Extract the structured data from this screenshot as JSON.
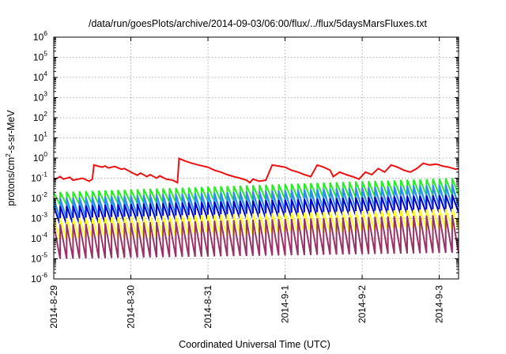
{
  "chart_data": {
    "type": "line",
    "title": "/data/run/goesPlots/archive/2014-09-03/06:00/flux/../flux/5daysMarsFluxes.txt",
    "xlabel": "Coordinated Universal Time (UTC)",
    "ylabel_prefix": "protons/cm",
    "ylabel_sup": "2",
    "ylabel_suffix": "-s-sr-MeV",
    "xscale": "time",
    "yscale": "log",
    "xlim": [
      "2014-08-29T00:00",
      "2014-09-03T06:00"
    ],
    "ylim": [
      1e-06,
      1000000.0
    ],
    "x_ticks": [
      {
        "t": "2014-08-29",
        "label": "2014-8-29"
      },
      {
        "t": "2014-08-30",
        "label": "2014-8-30"
      },
      {
        "t": "2014-08-31",
        "label": "2014-8-31"
      },
      {
        "t": "2014-09-01",
        "label": "2014-9-1"
      },
      {
        "t": "2014-09-02",
        "label": "2014-9-2"
      },
      {
        "t": "2014-09-03",
        "label": "2014-9-3"
      }
    ],
    "y_ticks": [
      {
        "base": "10",
        "exp": "-6"
      },
      {
        "base": "10",
        "exp": "-5"
      },
      {
        "base": "10",
        "exp": "-4"
      },
      {
        "base": "10",
        "exp": "-3"
      },
      {
        "base": "10",
        "exp": "-2"
      },
      {
        "base": "10",
        "exp": "-1"
      },
      {
        "base": "10",
        "exp": "0"
      },
      {
        "base": "10",
        "exp": "1"
      },
      {
        "base": "10",
        "exp": "2"
      },
      {
        "base": "10",
        "exp": "3"
      },
      {
        "base": "10",
        "exp": "4"
      },
      {
        "base": "10",
        "exp": "5"
      },
      {
        "base": "10",
        "exp": "6"
      }
    ],
    "grid": true,
    "legend": "none",
    "series": [
      {
        "color": "#ee1111",
        "x": [
          "2014-08-29T00:00",
          "2014-08-29T02:00",
          "2014-08-29T03:00",
          "2014-08-29T05:00",
          "2014-08-29T06:00",
          "2014-08-29T09:00",
          "2014-08-29T11:00",
          "2014-08-29T12:00",
          "2014-08-29T12:30",
          "2014-08-29T15:00",
          "2014-08-29T16:00",
          "2014-08-29T17:00",
          "2014-08-29T19:00",
          "2014-08-29T21:00",
          "2014-08-29T22:00",
          "2014-08-30T00:00",
          "2014-08-30T02:00",
          "2014-08-30T03:00",
          "2014-08-30T05:00",
          "2014-08-30T06:00",
          "2014-08-30T08:00",
          "2014-08-30T09:00",
          "2014-08-30T11:00",
          "2014-08-30T13:00",
          "2014-08-30T14:30",
          "2014-08-30T15:00",
          "2014-08-30T17:00",
          "2014-08-30T19:00",
          "2014-08-30T21:00",
          "2014-08-31T00:00",
          "2014-08-31T02:00",
          "2014-08-31T04:00",
          "2014-08-31T06:00",
          "2014-08-31T08:00",
          "2014-08-31T10:00",
          "2014-08-31T12:00",
          "2014-08-31T13:00",
          "2014-08-31T14:00",
          "2014-08-31T16:00",
          "2014-08-31T18:00",
          "2014-08-31T20:00",
          "2014-08-31T22:00",
          "2014-09-01T00:00",
          "2014-09-01T02:00",
          "2014-09-01T04:00",
          "2014-09-01T06:00",
          "2014-09-01T08:00",
          "2014-09-01T10:00",
          "2014-09-01T12:00",
          "2014-09-01T14:00",
          "2014-09-01T15:00",
          "2014-09-01T17:00",
          "2014-09-01T19:00",
          "2014-09-01T21:00",
          "2014-09-01T23:00",
          "2014-09-02T01:00",
          "2014-09-02T03:00",
          "2014-09-02T05:00",
          "2014-09-02T07:00",
          "2014-09-02T09:00",
          "2014-09-02T11:00",
          "2014-09-02T13:00",
          "2014-09-02T15:00",
          "2014-09-02T17:00",
          "2014-09-02T19:00",
          "2014-09-02T21:00",
          "2014-09-02T23:00",
          "2014-09-03T01:00",
          "2014-09-03T03:00",
          "2014-09-03T05:00",
          "2014-09-03T06:00"
        ],
        "y": [
          0.08,
          0.12,
          0.09,
          0.11,
          0.08,
          0.1,
          0.07,
          0.09,
          0.45,
          0.35,
          0.4,
          0.32,
          0.38,
          0.28,
          0.3,
          0.2,
          0.14,
          0.18,
          0.12,
          0.15,
          0.1,
          0.13,
          0.09,
          0.08,
          0.06,
          0.95,
          0.7,
          0.55,
          0.45,
          0.35,
          0.25,
          0.2,
          0.15,
          0.12,
          0.1,
          0.08,
          0.06,
          0.09,
          0.07,
          0.08,
          0.45,
          0.4,
          0.35,
          0.25,
          0.2,
          0.15,
          0.12,
          0.45,
          0.35,
          0.25,
          0.12,
          0.2,
          0.15,
          0.12,
          0.09,
          0.2,
          0.15,
          0.3,
          0.2,
          0.45,
          0.35,
          0.25,
          0.2,
          0.3,
          0.55,
          0.45,
          0.5,
          0.4,
          0.35,
          0.28,
          0.3
        ]
      },
      {
        "color": "#22ee22",
        "kind": "sawtooth",
        "hi_start": 0.02,
        "hi_end": 0.1,
        "lo_start": 0.0045,
        "lo_end": 0.015
      },
      {
        "color": "#22cccc",
        "kind": "sawtooth",
        "hi_start": 0.006,
        "hi_end": 0.035,
        "lo_start": 0.0012,
        "lo_end": 0.005
      },
      {
        "color": "#3388ff",
        "kind": "sawtooth",
        "hi_start": 0.01,
        "hi_end": 0.05,
        "lo_start": 0.0009,
        "lo_end": 0.004
      },
      {
        "color": "#0000cc",
        "kind": "sawtooth",
        "hi_start": 0.004,
        "hi_end": 0.015,
        "lo_start": 0.0005,
        "lo_end": 0.002
      },
      {
        "color": "#ffff22",
        "kind": "sawtooth",
        "hi_start": 0.001,
        "hi_end": 0.003,
        "lo_start": 8e-05,
        "lo_end": 0.0003
      },
      {
        "color": "#993366",
        "kind": "sawtooth",
        "hi_start": 0.0005,
        "hi_end": 0.0015,
        "lo_start": 1e-05,
        "lo_end": 2e-05
      }
    ],
    "sawtooth_starts": [
      "2014-08-29T00:00",
      "2014-08-29T02:00",
      "2014-08-29T04:00",
      "2014-08-29T06:00",
      "2014-08-29T08:00",
      "2014-08-29T10:00",
      "2014-08-29T12:00",
      "2014-08-29T14:00",
      "2014-08-29T16:00",
      "2014-08-29T18:00",
      "2014-08-29T20:00",
      "2014-08-29T22:00",
      "2014-08-30T00:00",
      "2014-08-30T02:00",
      "2014-08-30T04:00",
      "2014-08-30T06:00",
      "2014-08-30T08:00",
      "2014-08-30T10:00",
      "2014-08-30T12:00",
      "2014-08-30T14:00",
      "2014-08-30T16:00",
      "2014-08-30T18:00",
      "2014-08-30T20:00",
      "2014-08-30T22:00",
      "2014-08-31T00:00",
      "2014-08-31T02:00",
      "2014-08-31T04:00",
      "2014-08-31T06:00",
      "2014-08-31T08:00",
      "2014-08-31T10:00",
      "2014-08-31T12:00",
      "2014-08-31T14:00",
      "2014-08-31T16:00",
      "2014-08-31T18:00",
      "2014-08-31T20:00",
      "2014-08-31T22:00",
      "2014-09-01T00:00",
      "2014-09-01T02:00",
      "2014-09-01T04:00",
      "2014-09-01T06:00",
      "2014-09-01T08:00",
      "2014-09-01T10:00",
      "2014-09-01T12:00",
      "2014-09-01T14:00",
      "2014-09-01T16:00",
      "2014-09-01T18:00",
      "2014-09-01T20:00",
      "2014-09-01T22:00",
      "2014-09-02T00:00",
      "2014-09-02T02:00",
      "2014-09-02T04:00",
      "2014-09-02T06:00",
      "2014-09-02T08:00",
      "2014-09-02T10:00",
      "2014-09-02T12:00",
      "2014-09-02T14:00",
      "2014-09-02T16:00",
      "2014-09-02T18:00",
      "2014-09-02T20:00",
      "2014-09-02T22:00",
      "2014-09-03T00:00",
      "2014-09-03T02:00",
      "2014-09-03T04:00"
    ]
  }
}
